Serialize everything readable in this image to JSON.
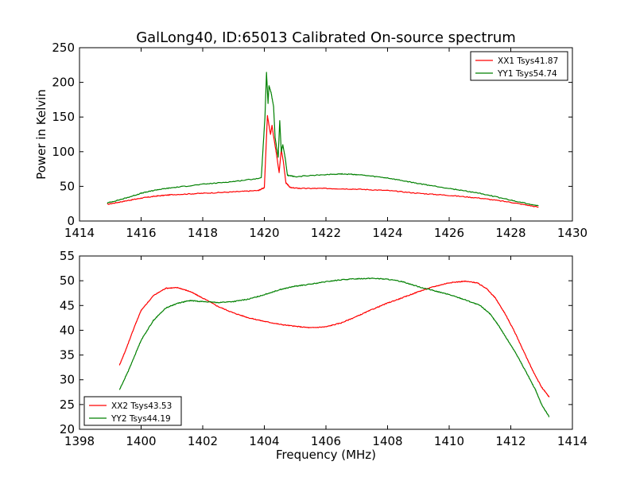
{
  "figure": {
    "title": "GalLong40, ID:65013 Calibrated On-source spectrum"
  },
  "chart_data": [
    {
      "type": "line",
      "title": "GalLong40, ID:65013 Calibrated On-source spectrum",
      "xlabel": "",
      "ylabel": "Power in Kelvin",
      "xlim": [
        1414,
        1430
      ],
      "ylim": [
        0,
        250
      ],
      "xticks": [
        1414,
        1416,
        1418,
        1420,
        1422,
        1424,
        1426,
        1428,
        1430
      ],
      "yticks": [
        0,
        50,
        100,
        150,
        200,
        250
      ],
      "grid": false,
      "legend_position": "top-right",
      "series": [
        {
          "name": "XX1 Tsys41.87",
          "color": "#ff0000",
          "x": [
            1414.9,
            1415.5,
            1416.0,
            1416.5,
            1417.0,
            1418.0,
            1419.0,
            1419.8,
            1420.0,
            1420.05,
            1420.1,
            1420.2,
            1420.25,
            1420.3,
            1420.4,
            1420.48,
            1420.55,
            1420.62,
            1420.7,
            1420.85,
            1421.2,
            1422.0,
            1423.0,
            1424.0,
            1425.0,
            1426.0,
            1427.0,
            1428.0,
            1428.9
          ],
          "values": [
            24,
            29,
            33,
            36,
            38,
            40,
            42,
            44,
            48,
            100,
            152,
            125,
            138,
            122,
            95,
            70,
            103,
            85,
            55,
            48,
            47,
            47,
            46,
            44,
            40,
            37,
            33,
            27,
            20
          ]
        },
        {
          "name": "YY1 Tsys54.74",
          "color": "#008000",
          "x": [
            1414.9,
            1415.5,
            1416.0,
            1416.5,
            1417.0,
            1418.0,
            1419.0,
            1419.9,
            1420.02,
            1420.07,
            1420.12,
            1420.15,
            1420.22,
            1420.3,
            1420.35,
            1420.45,
            1420.5,
            1420.55,
            1420.6,
            1420.68,
            1420.75,
            1421.0,
            1422.0,
            1422.5,
            1423.0,
            1424.0,
            1425.0,
            1426.0,
            1427.0,
            1428.0,
            1428.9
          ],
          "values": [
            26,
            33,
            40,
            45,
            48,
            53,
            57,
            62,
            150,
            214,
            170,
            195,
            185,
            165,
            120,
            92,
            145,
            100,
            110,
            90,
            66,
            64,
            67,
            68,
            67,
            62,
            54,
            47,
            40,
            30,
            22
          ]
        }
      ]
    },
    {
      "type": "line",
      "title": "",
      "xlabel": "Frequency (MHz)",
      "ylabel": "",
      "xlim": [
        1398,
        1414
      ],
      "ylim": [
        20,
        55
      ],
      "xticks": [
        1398,
        1400,
        1402,
        1404,
        1406,
        1408,
        1410,
        1412,
        1414
      ],
      "yticks": [
        20,
        25,
        30,
        35,
        40,
        45,
        50,
        55
      ],
      "grid": false,
      "legend_position": "bottom-left",
      "series": [
        {
          "name": "XX2 Tsys43.53",
          "color": "#ff0000",
          "x": [
            1399.3,
            1399.5,
            1399.8,
            1400.0,
            1400.4,
            1400.8,
            1401.2,
            1401.6,
            1402.0,
            1402.5,
            1403.0,
            1403.5,
            1404.0,
            1404.5,
            1405.0,
            1405.5,
            1406.0,
            1406.5,
            1407.0,
            1407.5,
            1408.0,
            1408.5,
            1409.0,
            1409.5,
            1410.0,
            1410.5,
            1410.9,
            1411.2,
            1411.5,
            1411.8,
            1412.1,
            1412.4,
            1412.7,
            1413.0,
            1413.25
          ],
          "values": [
            33,
            36,
            41,
            44,
            47,
            48.5,
            48.6,
            47.8,
            46.5,
            44.8,
            43.5,
            42.5,
            41.8,
            41.2,
            40.8,
            40.5,
            40.7,
            41.5,
            42.8,
            44.2,
            45.5,
            46.6,
            47.8,
            48.8,
            49.6,
            49.9,
            49.6,
            48.5,
            46.5,
            43.5,
            40,
            36,
            32,
            28.5,
            26.5
          ]
        },
        {
          "name": "YY2 Tsys44.19",
          "color": "#008000",
          "x": [
            1399.3,
            1399.6,
            1400.0,
            1400.4,
            1400.8,
            1401.2,
            1401.6,
            1402.0,
            1402.5,
            1403.0,
            1403.5,
            1404.0,
            1404.5,
            1405.0,
            1405.5,
            1406.0,
            1406.5,
            1407.0,
            1407.5,
            1408.0,
            1408.5,
            1409.0,
            1409.5,
            1410.0,
            1410.5,
            1411.0,
            1411.3,
            1411.6,
            1411.9,
            1412.2,
            1412.5,
            1412.8,
            1413.0,
            1413.25
          ],
          "values": [
            28,
            32,
            38,
            42,
            44.5,
            45.5,
            46,
            45.8,
            45.6,
            45.8,
            46.3,
            47.2,
            48.2,
            48.9,
            49.3,
            49.8,
            50.2,
            50.4,
            50.5,
            50.3,
            49.8,
            48.8,
            48,
            47.2,
            46.2,
            45,
            43.5,
            41,
            38,
            35,
            31.5,
            28,
            25,
            22.5
          ]
        }
      ]
    }
  ]
}
